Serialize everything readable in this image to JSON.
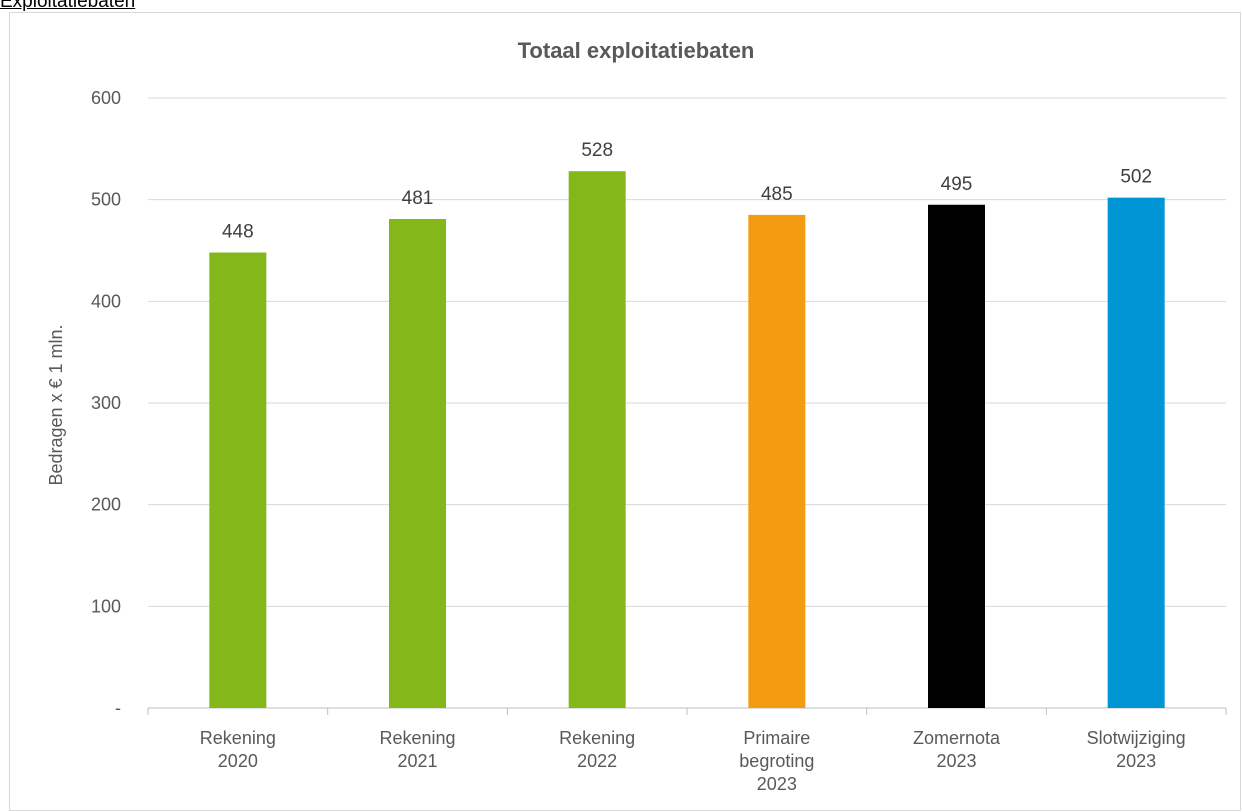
{
  "header": {
    "link_text": "Exploitatiebaten"
  },
  "chart_data": {
    "type": "bar",
    "title": "Totaal exploitatiebaten",
    "xlabel": "",
    "ylabel": "Bedragen x € 1 mln.",
    "ylim": [
      0,
      600
    ],
    "yticks": [
      0,
      100,
      200,
      300,
      400,
      500,
      600
    ],
    "ytick_labels": [
      "-",
      "100",
      "200",
      "300",
      "400",
      "500",
      "600"
    ],
    "grid": true,
    "categories": [
      [
        "Rekening",
        "2020"
      ],
      [
        "Rekening",
        "2021"
      ],
      [
        "Rekening",
        "2022"
      ],
      [
        "Primaire",
        "begroting",
        "2023"
      ],
      [
        "Zomernota",
        "2023"
      ],
      [
        "Slotwijziging",
        "2023"
      ]
    ],
    "values": [
      448,
      481,
      528,
      485,
      495,
      502
    ],
    "data_labels": [
      "448",
      "481",
      "528",
      "485",
      "495",
      "502"
    ],
    "colors": [
      "#84b81a",
      "#84b81a",
      "#84b81a",
      "#f39c12",
      "#000000",
      "#0096d6"
    ]
  }
}
